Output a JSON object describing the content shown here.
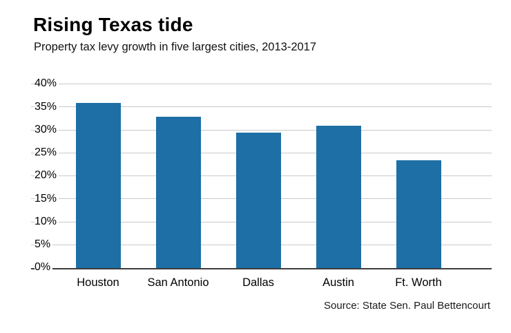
{
  "chart_data": {
    "type": "bar",
    "title": "Rising Texas tide",
    "subtitle": "Property tax levy growth in five largest cities, 2013-2017",
    "categories": [
      "Houston",
      "San Antonio",
      "Dallas",
      "Austin",
      "Ft. Worth"
    ],
    "values": [
      36,
      33,
      29.5,
      31,
      23.5
    ],
    "ylim": [
      0,
      40
    ],
    "ytick_step": 5,
    "ytick_labels": [
      "0%",
      "5%",
      "10%",
      "15%",
      "20%",
      "25%",
      "30%",
      "35%",
      "40%"
    ],
    "grid": true,
    "legend": "none",
    "source": "Source: State Sen. Paul Bettencourt",
    "colors": {
      "bar": "#1d6fa5",
      "gridline": "#c9c9c9",
      "axis": "#3c3c3c"
    }
  }
}
